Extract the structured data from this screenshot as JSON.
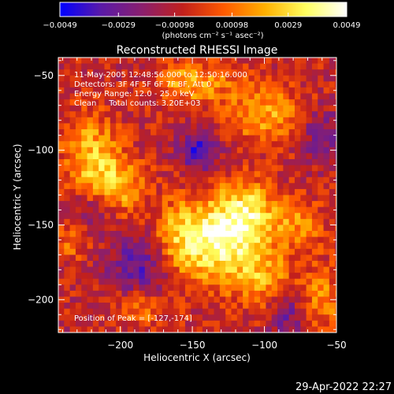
{
  "chart_data": {
    "type": "heatmap",
    "title": "Reconstructed RHESSI Image",
    "xlabel": "Heliocentric X (arcsec)",
    "ylabel": "Heliocentric Y (arcsec)",
    "xlim": [
      -243,
      -50
    ],
    "ylim": [
      -222,
      -38
    ],
    "x_ticks": [
      -200,
      -150,
      -100,
      -50
    ],
    "y_ticks": [
      -50,
      -100,
      -150,
      -200
    ],
    "x_tick_labels": [
      "−200",
      "−150",
      "−100",
      "−50"
    ],
    "y_tick_labels": [
      "−50",
      "−100",
      "−150",
      "−200"
    ],
    "colorbar": {
      "min": -0.0049,
      "max": 0.0049,
      "ticks": [
        -0.0049,
        -0.0029,
        -0.00098,
        0.00098,
        0.0029,
        0.0049
      ],
      "tick_labels": [
        "−0.0049",
        "−0.0029",
        "−0.00098",
        "0.00098",
        "0.0029",
        "0.0049"
      ],
      "unit_label": "(photons cm⁻² s⁻¹ asec⁻²)",
      "colors": [
        "#0000ff",
        "#5a1aa8",
        "#8a1f6e",
        "#c2201c",
        "#ff5a00",
        "#ffb000",
        "#ffff60",
        "#ffffff"
      ]
    },
    "annotations": [
      "11-May-2005 12:48:56.000 to 12:50:16.000",
      "Detectors: 3F 4F 5F 6F 7F 8F, Att 0",
      "Energy Range: 12.0 - 25.0 keV",
      "Clean     Total counts: 3.20E+03"
    ],
    "peak_label": "Position of Peak = [-127,-174]",
    "peak": {
      "x": -127,
      "y": -174
    },
    "hotspots": [
      {
        "x": -130,
        "y": -160,
        "sx": 18,
        "sy": 20,
        "a": 0.0045
      },
      {
        "x": -110,
        "y": -140,
        "sx": 14,
        "sy": 14,
        "a": 0.0032
      },
      {
        "x": -160,
        "y": -160,
        "sx": 14,
        "sy": 18,
        "a": 0.003
      },
      {
        "x": -220,
        "y": -105,
        "sx": 14,
        "sy": 20,
        "a": 0.0032
      },
      {
        "x": -200,
        "y": -125,
        "sx": 12,
        "sy": 14,
        "a": 0.0028
      },
      {
        "x": -100,
        "y": -75,
        "sx": 18,
        "sy": 14,
        "a": 0.0028
      },
      {
        "x": -150,
        "y": -55,
        "sx": 18,
        "sy": 10,
        "a": 0.0028
      },
      {
        "x": -100,
        "y": -185,
        "sx": 14,
        "sy": 16,
        "a": 0.0025
      },
      {
        "x": -60,
        "y": -200,
        "sx": 10,
        "sy": 16,
        "a": 0.0022
      },
      {
        "x": -75,
        "y": -150,
        "sx": 12,
        "sy": 12,
        "a": 0.0022
      },
      {
        "x": -185,
        "y": -205,
        "sx": 12,
        "sy": 8,
        "a": 0.0022
      },
      {
        "x": -235,
        "y": -160,
        "sx": 10,
        "sy": 10,
        "a": 0.0018
      },
      {
        "x": -145,
        "y": -100,
        "sx": 10,
        "sy": 10,
        "a": -0.003
      },
      {
        "x": -185,
        "y": -175,
        "sx": 16,
        "sy": 16,
        "a": -0.0026
      },
      {
        "x": -220,
        "y": -140,
        "sx": 12,
        "sy": 10,
        "a": -0.0018
      },
      {
        "x": -85,
        "y": -210,
        "sx": 10,
        "sy": 10,
        "a": -0.0022
      },
      {
        "x": -60,
        "y": -90,
        "sx": 10,
        "sy": 12,
        "a": -0.002
      }
    ]
  },
  "footer_timestamp": "29-Apr-2022 22:27"
}
